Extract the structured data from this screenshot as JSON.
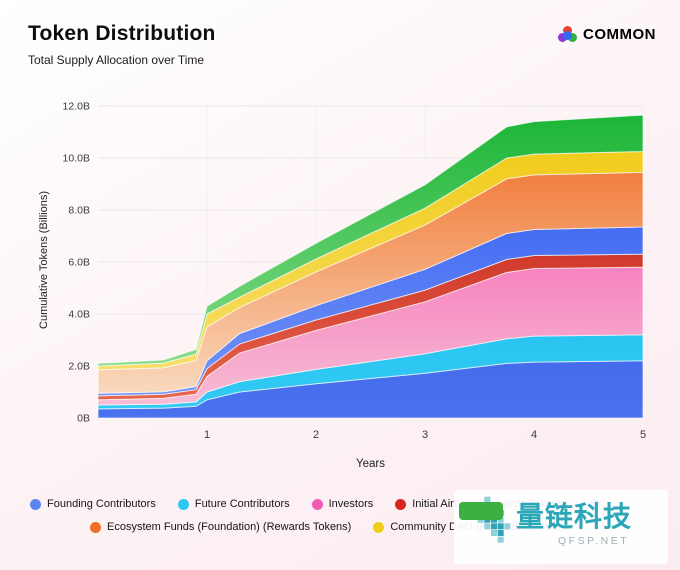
{
  "header": {
    "title": "Token Distribution",
    "subtitle": "Total Supply Allocation over Time",
    "logo_text": "COMMON"
  },
  "chart_data": {
    "type": "area",
    "stacked": true,
    "title": "Token Distribution",
    "subtitle": "Total Supply Allocation over Time",
    "xlabel": "Years",
    "ylabel": "Cumulative Tokens (Billions)",
    "xlim": [
      0,
      5
    ],
    "ylim": [
      0,
      12
    ],
    "grid": true,
    "legend_position": "bottom",
    "x_ticks": [
      1,
      2,
      3,
      4,
      5
    ],
    "y_ticks": [
      {
        "v": 0,
        "label": "0B"
      },
      {
        "v": 2,
        "label": "2.0B"
      },
      {
        "v": 4,
        "label": "4.0B"
      },
      {
        "v": 6,
        "label": "6.0B"
      },
      {
        "v": 8,
        "label": "8.0B"
      },
      {
        "v": 10,
        "label": "10.0B"
      },
      {
        "v": 12,
        "label": "12.0B"
      }
    ],
    "x": [
      0,
      0.6,
      0.9,
      1,
      1.3,
      2,
      3,
      3.75,
      4,
      5
    ],
    "series": [
      {
        "name": "Founding Contributors",
        "color_bottom": "#4a71ee",
        "color_top": "#2d55e0",
        "values": [
          0.35,
          0.38,
          0.45,
          0.7,
          1.0,
          1.32,
          1.72,
          2.1,
          2.15,
          2.2
        ]
      },
      {
        "name": "Future Contributors",
        "color_bottom": "#33cbf4",
        "color_top": "#0fb2e6",
        "values": [
          0.15,
          0.15,
          0.17,
          0.3,
          0.4,
          0.55,
          0.75,
          0.95,
          1.0,
          1.0
        ]
      },
      {
        "name": "Investors",
        "color_bottom": "#f7c3d6",
        "color_top": "#f63fa8",
        "values": [
          0.2,
          0.23,
          0.3,
          0.6,
          1.1,
          1.5,
          2.0,
          2.55,
          2.6,
          2.6
        ]
      },
      {
        "name": "Initial Airdrop (Rewards Tokens)",
        "color_bottom": "#ea6a50",
        "color_top": "#b80d0a",
        "values": [
          0.15,
          0.15,
          0.17,
          0.3,
          0.35,
          0.4,
          0.45,
          0.5,
          0.5,
          0.5
        ]
      },
      {
        "name": "",
        "color_bottom": "#7e9bf7",
        "color_top": "#1f4ff0",
        "values": [
          0.1,
          0.1,
          0.12,
          0.3,
          0.4,
          0.55,
          0.8,
          1.0,
          1.0,
          1.05
        ]
      },
      {
        "name": "Ecosystem Funds (Foundation) (Rewards Tokens)",
        "color_bottom": "#fae3cc",
        "color_top": "#ee6418",
        "values": [
          0.9,
          0.92,
          1.0,
          1.3,
          1.0,
          1.3,
          1.7,
          2.1,
          2.1,
          2.1
        ]
      },
      {
        "name": "Community DAO (Rewards Tokens)",
        "color_bottom": "#f8e27a",
        "color_top": "#f0c90d",
        "values": [
          0.15,
          0.18,
          0.25,
          0.5,
          0.4,
          0.5,
          0.65,
          0.8,
          0.8,
          0.8
        ]
      },
      {
        "name": "",
        "color_bottom": "#9fe39b",
        "color_top": "#17b434",
        "values": [
          0.1,
          0.12,
          0.18,
          0.3,
          0.42,
          0.6,
          0.9,
          1.2,
          1.25,
          1.4
        ]
      }
    ]
  },
  "legend": {
    "rows": [
      [
        {
          "label": "Founding Contributors",
          "color": "#5c85f2"
        },
        {
          "label": "Future Contributors",
          "color": "#2ec9f0"
        },
        {
          "label": "Investors",
          "color": "#f05bb4"
        },
        {
          "label": "Initial Airdrop (Rewards Tokens)",
          "color": "#d7261d"
        },
        {
          "label": "",
          "color": "#2e62f6"
        }
      ],
      [
        {
          "label": "Ecosystem Funds (Foundation) (Rewards Tokens)",
          "color": "#ef7125"
        },
        {
          "label": "Community DAO (Rewards Tokens)",
          "color": "#f0cd1c"
        }
      ]
    ]
  },
  "watermark": {
    "text": "量链科技",
    "sub": "QFSP.NET"
  }
}
